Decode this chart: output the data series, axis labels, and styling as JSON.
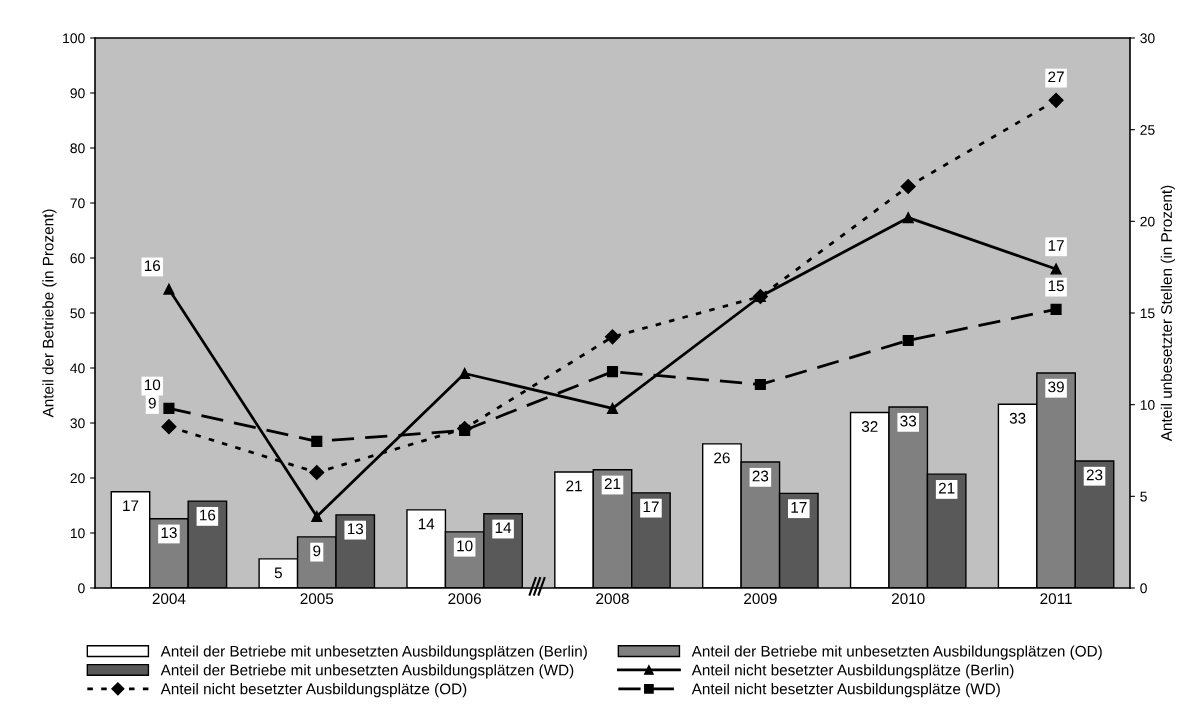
{
  "chart_data": {
    "type": "bar",
    "ylabel": "Anteil der Betriebe (in Prozent)",
    "y2label": "Anteil unbesetzter Stellen (in Prozent)",
    "categories": [
      "2004",
      "2005",
      "2006",
      "2008",
      "2009",
      "2010",
      "2011"
    ],
    "series": [
      {
        "name": "Anteil der Betriebe mit unbesetzten Ausbildungsplätzen (Berlin)",
        "type": "bar",
        "color": "#ffffff",
        "values": [
          17.5,
          5.3,
          14.2,
          21.1,
          26.2,
          31.9,
          33.4
        ],
        "value_labels": [
          "17",
          "5",
          "14",
          "21",
          "26",
          "32",
          "33"
        ]
      },
      {
        "name": "Anteil der Betriebe mit unbesetzten Ausbildungsplätzen (OD)",
        "type": "bar",
        "color": "#808080",
        "values": [
          12.6,
          9.3,
          10.2,
          21.5,
          22.9,
          32.9,
          39.1
        ],
        "value_labels": [
          "13",
          "9",
          "10",
          "21",
          "23",
          "33",
          "39"
        ]
      },
      {
        "name": "Anteil der Betriebe mit unbesetzten Ausbildungsplätzen (WD)",
        "type": "bar",
        "color": "#595959",
        "values": [
          15.8,
          13.3,
          13.5,
          17.3,
          17.2,
          20.7,
          23.1
        ],
        "value_labels": [
          "16",
          "13",
          "14",
          "17",
          "17",
          "21",
          "23"
        ]
      },
      {
        "name": "Anteil nicht besetzter Ausbildungsplätze (Berlin)",
        "type": "line",
        "axis": "y2",
        "color": "#000000",
        "marker": "triangle",
        "line_style": "solid",
        "values": [
          16.3,
          3.9,
          11.7,
          9.8,
          15.9,
          20.2,
          17.4
        ],
        "value_labels": [
          "16",
          null,
          null,
          null,
          null,
          null,
          "17"
        ]
      },
      {
        "name": "Anteil nicht besetzter Ausbildungsplätze (OD)",
        "type": "line",
        "axis": "y2",
        "color": "#000000",
        "marker": "diamond",
        "line_style": "dotted",
        "values": [
          8.8,
          6.3,
          8.7,
          13.7,
          15.9,
          21.9,
          26.6
        ],
        "value_labels": [
          "9",
          null,
          null,
          null,
          null,
          null,
          "27"
        ]
      },
      {
        "name": "Anteil nicht besetzter Ausbildungsplätze (WD)",
        "type": "line",
        "axis": "y2",
        "color": "#000000",
        "marker": "square",
        "line_style": "dashed",
        "values": [
          9.8,
          8.0,
          8.6,
          11.8,
          11.1,
          13.5,
          15.2
        ],
        "value_labels": [
          "10",
          null,
          null,
          null,
          null,
          null,
          "15"
        ]
      }
    ],
    "ylim": [
      0,
      100
    ],
    "yticks": [
      0,
      10,
      20,
      30,
      40,
      50,
      60,
      70,
      80,
      90,
      100
    ],
    "y2lim": [
      0,
      30
    ],
    "y2ticks": [
      0,
      5,
      10,
      15,
      20,
      25,
      30
    ],
    "grid": false,
    "legend": "bottom"
  }
}
